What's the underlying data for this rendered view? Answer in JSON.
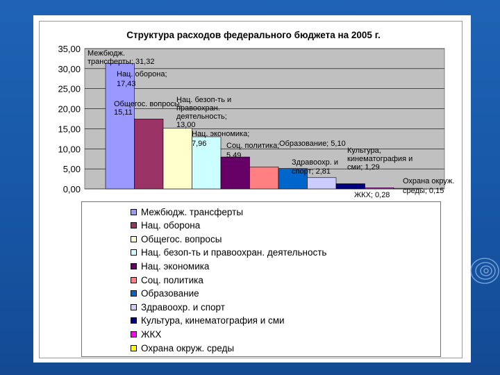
{
  "chart_data": {
    "type": "bar",
    "title": "Структура расходов федерального бюджета на 2005 г.",
    "ylim": [
      0,
      35
    ],
    "yticks": [
      "0,00",
      "5,00",
      "10,00",
      "15,00",
      "20,00",
      "25,00",
      "30,00",
      "35,00"
    ],
    "grid": true,
    "legend_position": "bottom",
    "categories": [
      "Межбюдж. трансферты",
      "Нац. оборона",
      "Общегос. вопросы",
      "Нац. безоп-ть и правоохран. деятельность",
      "Нац. экономика",
      "Соц. политика",
      "Образование",
      "Здравоохр. и спорт",
      "Культура, кинематография и сми",
      "ЖКХ",
      "Охрана окруж. среды"
    ],
    "values": [
      31.32,
      17.43,
      15.11,
      13.0,
      7.96,
      5.49,
      5.1,
      2.81,
      1.29,
      0.28,
      0.15
    ],
    "colors": [
      "#9999ff",
      "#993366",
      "#ffffcc",
      "#ccffff",
      "#660066",
      "#ff8080",
      "#0066cc",
      "#ccccff",
      "#000080",
      "#ff00ff",
      "#ffff00"
    ],
    "data_labels": [
      [
        "Межбюдж.",
        "трансферты; 31,32"
      ],
      [
        "Нац. оборона;",
        "17,43"
      ],
      [
        "Общегос. вопросы;",
        "15,11"
      ],
      [
        "Нац. безоп-ть и",
        "правоохран.",
        "деятельность;",
        "13,00"
      ],
      [
        "Нац. экономика;",
        "7,96"
      ],
      [
        "Соц. политика;",
        "5,49"
      ],
      [
        "Образование; 5,10"
      ],
      [
        "Здравоохр. и",
        "спорт; 2,81"
      ],
      [
        "Культура,",
        "кинематография и",
        "сми; 1,29"
      ],
      [
        "ЖКХ; 0,28"
      ],
      [
        "Охрана окруж.",
        "среды; 0,15"
      ]
    ]
  }
}
